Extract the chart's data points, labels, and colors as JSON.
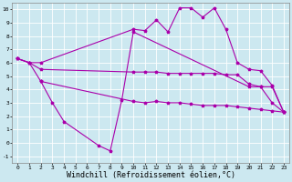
{
  "background_color": "#cce8f0",
  "line_color": "#aa00aa",
  "grid_color": "#ffffff",
  "xlabel": "Windchill (Refroidissement éolien,°C)",
  "xlabel_fontsize": 6,
  "ylim": [
    -1.5,
    10.5
  ],
  "xlim": [
    -0.5,
    23.5
  ],
  "yticks": [
    -1,
    0,
    1,
    2,
    3,
    4,
    5,
    6,
    7,
    8,
    9,
    10
  ],
  "xticks": [
    0,
    1,
    2,
    3,
    4,
    5,
    6,
    7,
    8,
    9,
    10,
    11,
    12,
    13,
    14,
    15,
    16,
    17,
    18,
    19,
    20,
    21,
    22,
    23
  ],
  "series": [
    {
      "x": [
        0,
        1,
        2,
        10,
        11,
        12,
        13,
        14,
        15,
        16,
        17,
        18,
        19,
        20,
        21,
        22,
        23
      ],
      "y": [
        6.3,
        6.0,
        6.0,
        8.5,
        8.4,
        9.2,
        8.3,
        10.1,
        10.1,
        9.4,
        10.1,
        8.5,
        6.0,
        5.5,
        5.4,
        4.3,
        2.3
      ]
    },
    {
      "x": [
        0,
        1,
        2,
        10,
        11,
        12,
        13,
        14,
        15,
        16,
        17,
        18,
        19,
        20,
        21,
        22,
        23
      ],
      "y": [
        6.3,
        6.0,
        5.5,
        5.3,
        5.3,
        5.3,
        5.2,
        5.2,
        5.2,
        5.2,
        5.2,
        5.1,
        5.1,
        4.4,
        4.2,
        4.2,
        2.3
      ]
    },
    {
      "x": [
        0,
        1,
        2,
        10,
        11,
        12,
        13,
        14,
        15,
        16,
        17,
        18,
        19,
        20,
        21,
        22,
        23
      ],
      "y": [
        6.3,
        6.0,
        4.6,
        3.1,
        3.0,
        3.1,
        3.0,
        3.0,
        2.9,
        2.8,
        2.8,
        2.8,
        2.7,
        2.6,
        2.5,
        2.4,
        2.3
      ]
    },
    {
      "x": [
        2,
        3,
        4,
        7,
        8,
        9,
        10,
        20,
        21,
        22,
        23
      ],
      "y": [
        4.6,
        3.0,
        1.6,
        -0.2,
        -0.6,
        3.2,
        8.3,
        4.2,
        4.2,
        3.0,
        2.3
      ]
    }
  ]
}
